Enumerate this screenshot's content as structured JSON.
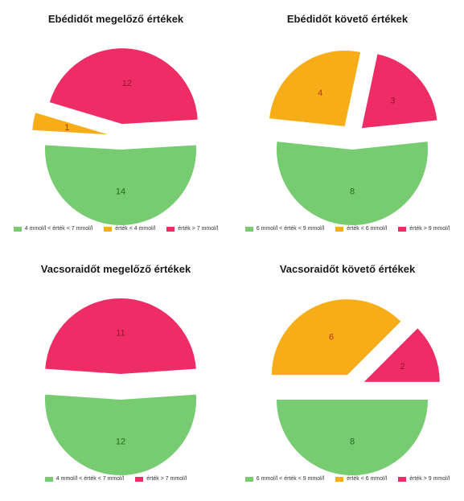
{
  "chart_data": [
    {
      "type": "pie",
      "title": "Ebédidőt megelőző értékek",
      "legend_position": "bottom",
      "slices": [
        {
          "label": "4 mmol/l < érték < 7 mmol/l",
          "value": 14,
          "color": "#77cc72"
        },
        {
          "label": "érték < 4 mmol/l",
          "value": 1,
          "color": "#f7ad18"
        },
        {
          "label": "érték > 7 mmol/l",
          "value": 12,
          "color": "#ee2c66"
        }
      ]
    },
    {
      "type": "pie",
      "title": "Ebédidőt követő értékek",
      "legend_position": "bottom",
      "slices": [
        {
          "label": "6 mmol/l < érték < 9 mmol/l",
          "value": 8,
          "color": "#77cc72"
        },
        {
          "label": "érték < 6 mmol/l",
          "value": 4,
          "color": "#f7ad18"
        },
        {
          "label": "érték > 9 mmol/l",
          "value": 3,
          "color": "#ee2c66"
        }
      ]
    },
    {
      "type": "pie",
      "title": "Vacsoraidőt megelőző értékek",
      "legend_position": "bottom",
      "slices": [
        {
          "label": "4 mmol/l < érték < 7 mmol/l",
          "value": 12,
          "color": "#77cc72"
        },
        {
          "label": "érték > 7 mmol/l",
          "value": 11,
          "color": "#ee2c66"
        }
      ]
    },
    {
      "type": "pie",
      "title": "Vacsoraidőt követő értékek",
      "legend_position": "bottom",
      "slices": [
        {
          "label": "6 mmol/l < érték < 9 mmol/l",
          "value": 8,
          "color": "#77cc72"
        },
        {
          "label": "érték < 6 mmol/l",
          "value": 6,
          "color": "#f7ad18"
        },
        {
          "label": "érték > 9 mmol/l",
          "value": 2,
          "color": "#ee2c66"
        }
      ]
    }
  ]
}
